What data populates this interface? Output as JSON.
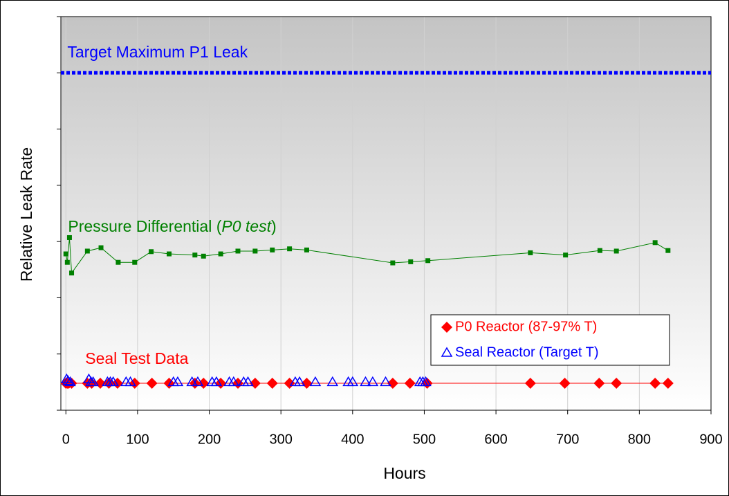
{
  "chart_data": {
    "type": "scatter",
    "x_label": "Hours",
    "y_label": "Relative Leak Rate",
    "xlim": [
      -7,
      900
    ],
    "xticks": [
      0,
      100,
      200,
      300,
      400,
      500,
      600,
      700,
      800,
      900
    ],
    "ylim": [
      0,
      7
    ],
    "yticks": [
      0,
      1,
      2,
      3,
      4,
      5,
      6,
      7
    ],
    "show_ytick_labels": false,
    "grid": true,
    "reference_lines": [
      {
        "value": 6,
        "color": "#0000ff"
      }
    ],
    "annotations": [
      {
        "segments": [
          {
            "text": "Target Maximum P1 Leak"
          }
        ],
        "color": "#0000ff",
        "x": 2,
        "y": 6.35
      },
      {
        "segments": [
          {
            "text": "Pressure Differential ("
          },
          {
            "text": "P0 test",
            "italic": true
          },
          {
            "text": ")"
          }
        ],
        "color": "#008000",
        "x": 3,
        "y": 3.25
      },
      {
        "segments": [
          {
            "text": "Seal Test Data"
          }
        ],
        "color": "#ff0000",
        "x": 27,
        "y": 0.9
      }
    ],
    "series": [
      {
        "color": "#008000",
        "marker": "square",
        "line": true,
        "x": [
          0,
          2,
          5,
          8,
          30,
          49,
          73,
          96,
          119,
          144,
          180,
          192,
          216,
          240,
          264,
          288,
          312,
          336,
          456,
          481,
          505,
          648,
          697,
          745,
          768,
          822,
          840
        ],
        "values": [
          2.78,
          2.63,
          3.07,
          2.44,
          2.83,
          2.89,
          2.63,
          2.63,
          2.82,
          2.78,
          2.76,
          2.74,
          2.78,
          2.83,
          2.83,
          2.85,
          2.87,
          2.85,
          2.62,
          2.64,
          2.66,
          2.8,
          2.76,
          2.84,
          2.83,
          2.98,
          2.84
        ]
      },
      {
        "name": "P0 Reactor (87-97% T)",
        "color": "#ff0000",
        "marker": "diamond",
        "line": true,
        "x": [
          0,
          2,
          4,
          8,
          30,
          36,
          48,
          60,
          72,
          96,
          120,
          144,
          180,
          192,
          216,
          240,
          264,
          288,
          312,
          336,
          456,
          480,
          504,
          648,
          696,
          744,
          768,
          822,
          840
        ],
        "values": [
          0.48,
          0.48,
          0.48,
          0.48,
          0.48,
          0.48,
          0.48,
          0.48,
          0.48,
          0.48,
          0.48,
          0.48,
          0.48,
          0.48,
          0.48,
          0.48,
          0.48,
          0.48,
          0.48,
          0.48,
          0.48,
          0.48,
          0.48,
          0.48,
          0.48,
          0.48,
          0.48,
          0.48,
          0.48
        ]
      },
      {
        "name": "Seal Reactor (Target T)",
        "color": "#0000ff",
        "marker": "triangle",
        "line": false,
        "x": [
          1,
          3,
          6,
          32,
          35,
          38,
          58,
          62,
          66,
          84,
          90,
          150,
          156,
          176,
          184,
          204,
          210,
          228,
          234,
          248,
          254,
          320,
          326,
          348,
          372,
          394,
          400,
          418,
          428,
          446,
          494,
          498,
          502
        ],
        "values": [
          0.55,
          0.52,
          0.5,
          0.55,
          0.5,
          0.5,
          0.5,
          0.5,
          0.5,
          0.5,
          0.5,
          0.5,
          0.5,
          0.5,
          0.5,
          0.5,
          0.5,
          0.5,
          0.5,
          0.5,
          0.5,
          0.5,
          0.5,
          0.5,
          0.5,
          0.5,
          0.5,
          0.5,
          0.5,
          0.5,
          0.5,
          0.5,
          0.5
        ]
      }
    ]
  }
}
